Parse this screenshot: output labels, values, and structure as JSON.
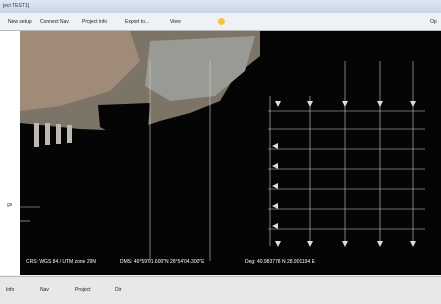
{
  "window": {
    "title": "ject TEST1]"
  },
  "toolbar": {
    "items": [
      "New setup",
      "Connect Nav",
      "Project info",
      "Export to...",
      "View"
    ],
    "right": "Op"
  },
  "sidebar": {
    "label": "gs"
  },
  "status": {
    "crs": "CRS: WGS 84 / UTM zone 29N",
    "dms": "DMS: 40°59'01.600\"N  28°54'04.300\"E",
    "deg": "Deg: 40.983778 N  28.901194 E"
  },
  "footer": {
    "items": [
      "Info",
      "Nav",
      "Project",
      "Dir"
    ]
  }
}
